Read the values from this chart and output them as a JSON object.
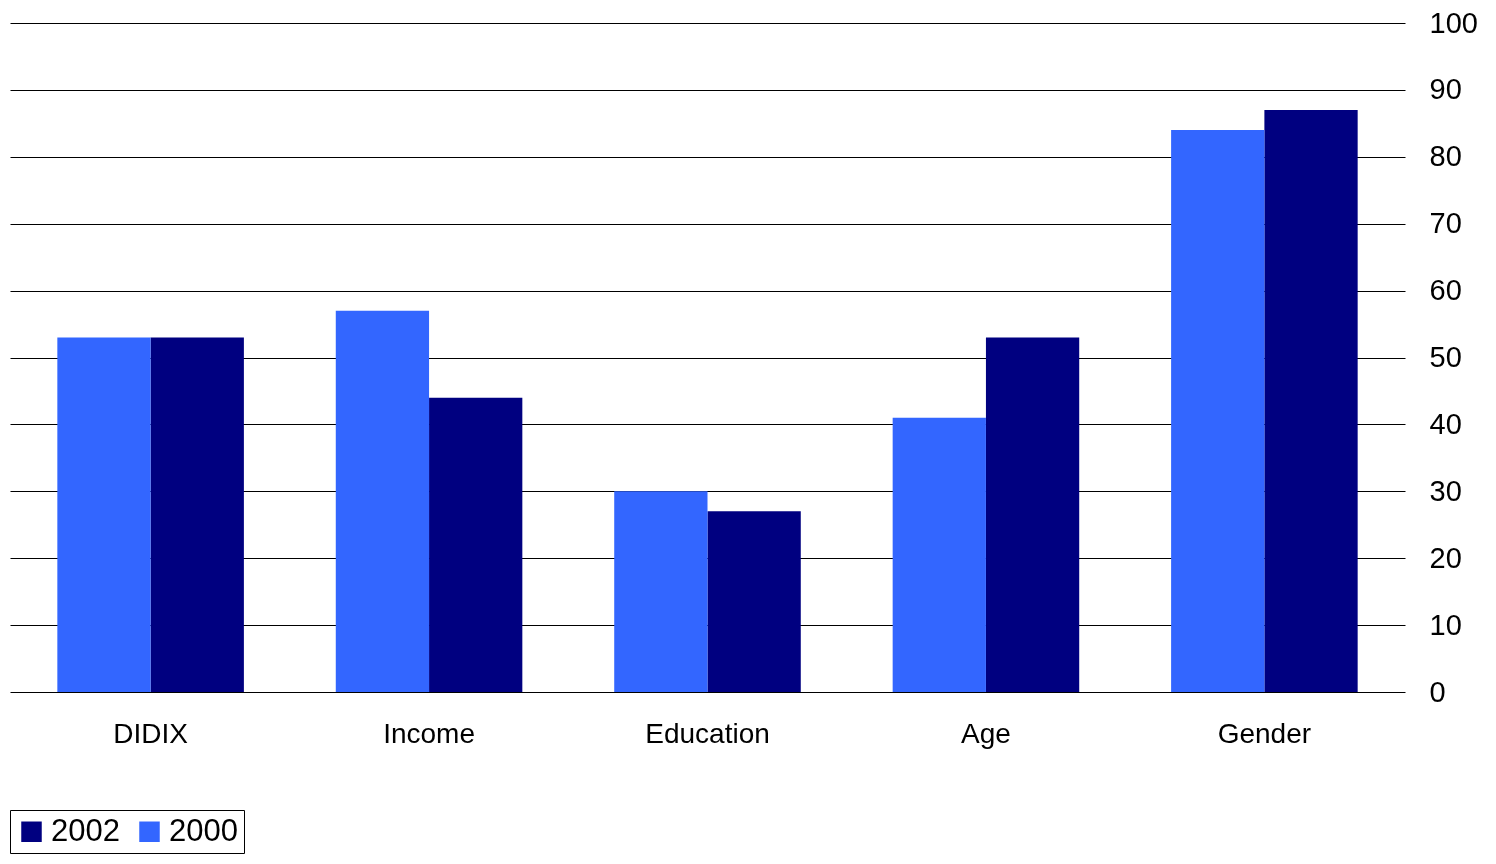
{
  "chart_data": {
    "type": "bar",
    "categories": [
      "DIDIX",
      "Income",
      "Education",
      "Age",
      "Gender"
    ],
    "series": [
      {
        "name": "2002",
        "color": "#000080",
        "values": [
          53,
          44,
          27,
          53,
          87
        ]
      },
      {
        "name": "2000",
        "color": "#3366ff",
        "values": [
          53,
          57,
          30,
          41,
          84
        ]
      }
    ],
    "ylim": [
      0,
      100
    ],
    "yticks": [
      0,
      10,
      20,
      30,
      40,
      50,
      60,
      70,
      80,
      90,
      100
    ],
    "grid": "y",
    "legend": "bottom"
  }
}
